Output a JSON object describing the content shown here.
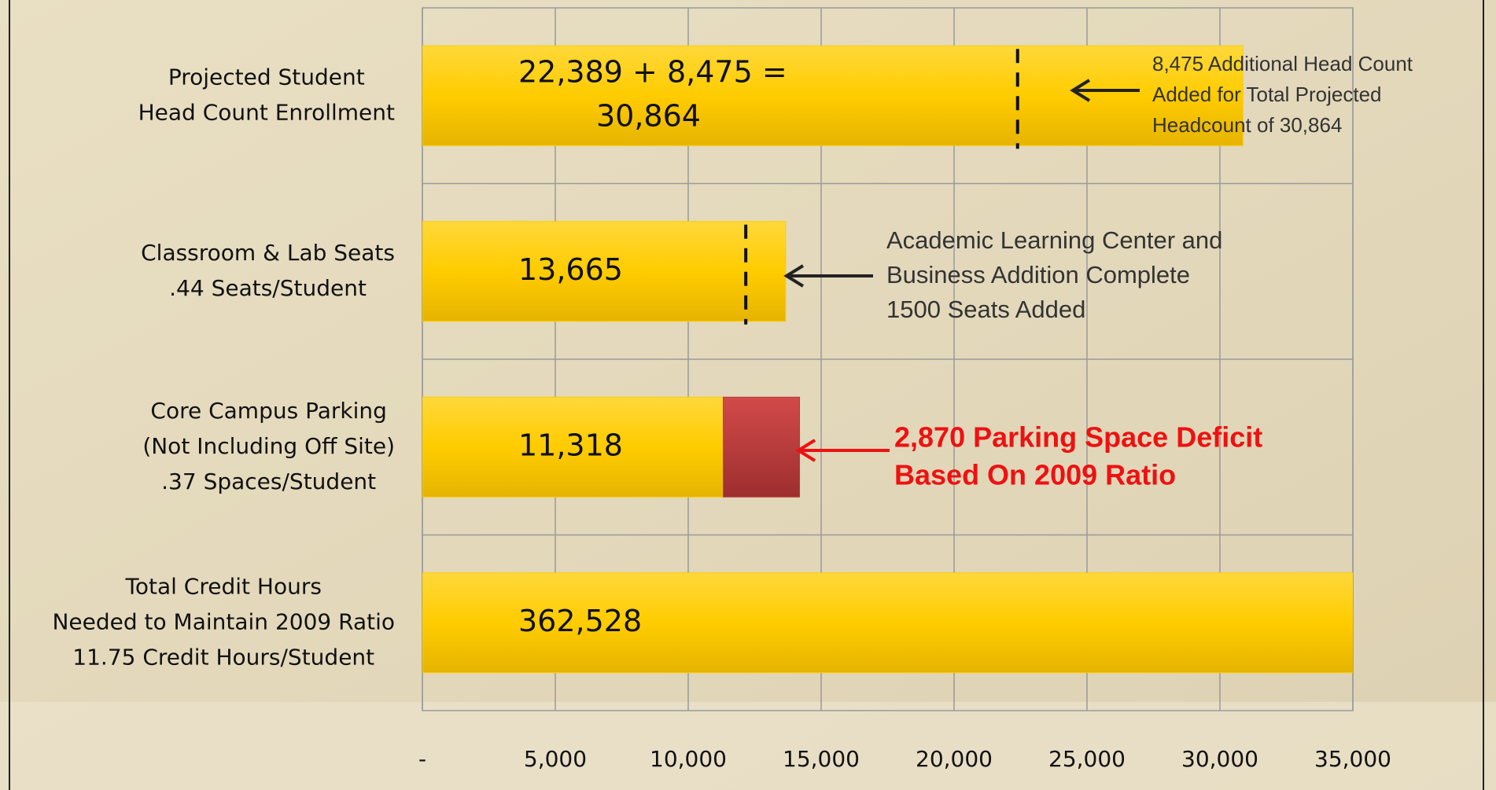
{
  "chart_data": {
    "type": "bar",
    "categories": [
      [
        "Projected Student",
        "Head Count Enrollment"
      ],
      [
        "Classroom & Lab Seats",
        ".44 Seats/Student"
      ],
      [
        "Core Campus Parking",
        "(Not Including Off Site)",
        ".37 Spaces/Student"
      ],
      [
        "Total Credit Hours",
        "Needed to Maintain 2009 Ratio",
        "11.75 Credit Hours/Student"
      ]
    ],
    "series": [
      {
        "color": "#ffcc00",
        "values": [
          30864,
          13665,
          11318,
          362528
        ],
        "value_labels": [
          [
            "22,389 + 8,475 =",
            "30,864"
          ],
          "13,665",
          "11,318",
          "362,528"
        ]
      },
      {
        "color": "#b83a3a",
        "values": [
          null,
          null,
          2870,
          null
        ]
      }
    ],
    "markers": [
      {
        "category": 0,
        "value": 22389
      },
      {
        "category": 1,
        "value": 12165
      }
    ],
    "annotations": [
      {
        "lines": [
          "8,475 Additional Head Count",
          "Added for Total Projected",
          "Headcount of 30,864"
        ],
        "color": "#333333"
      },
      {
        "lines": [
          "Academic Learning Center and",
          "Business Addition Complete",
          "1500 Seats Added"
        ],
        "color": "#333333"
      },
      {
        "lines": [
          "2,870 Parking Space Deficit",
          "Based On 2009 Ratio"
        ],
        "color": "#ee1111"
      }
    ],
    "xlim": [
      0,
      35000
    ],
    "xticks": [
      {
        "value": 0,
        "label": "-"
      },
      {
        "value": 5000,
        "label": "5,000"
      },
      {
        "value": 10000,
        "label": "10,000"
      },
      {
        "value": 15000,
        "label": "15,000"
      },
      {
        "value": 20000,
        "label": "20,000"
      },
      {
        "value": 25000,
        "label": "25,000"
      },
      {
        "value": 30000,
        "label": "30,000"
      },
      {
        "value": 35000,
        "label": "35,000"
      }
    ],
    "grid": true
  }
}
